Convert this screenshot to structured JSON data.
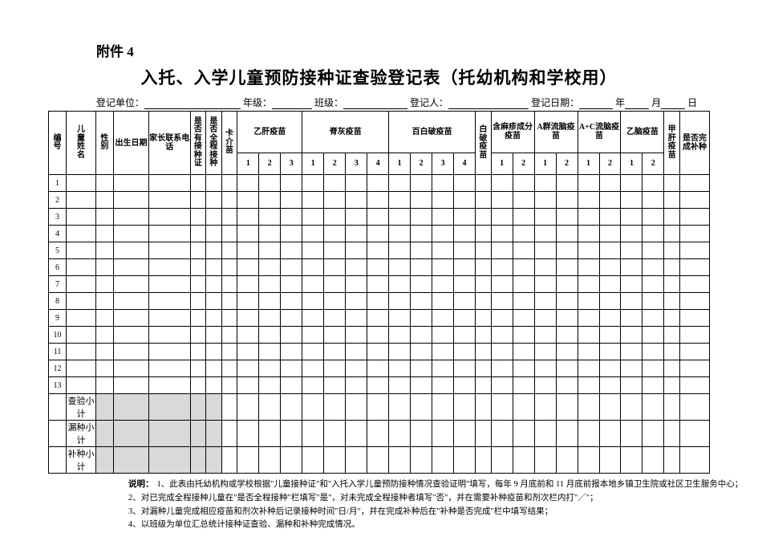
{
  "attachment": "附件 4",
  "title": "入托、入学儿童预防接种证查验登记表（托幼机构和学校用）",
  "meta": {
    "unit_label": "登记单位：",
    "grade_label": "年级：",
    "class_label": "班级：",
    "registrar_label": "登记人：",
    "date_label": "登记日期：",
    "year_unit": "年",
    "month_unit": "月",
    "day_unit": "日"
  },
  "headers": {
    "idx": "编号",
    "name": "儿童姓名",
    "sex": "性别",
    "dob": "出生日期",
    "phone": "家长联系电话",
    "has_cert": "是否有接种证",
    "full_course": "是否全程接种",
    "bcg": "卡介苗",
    "hepb": "乙肝疫苗",
    "polio": "脊灰疫苗",
    "dtp": "百白破疫苗",
    "dt": "白破疫苗",
    "measles": "含麻疹成分疫苗",
    "mena": "A群流脑疫苗",
    "menac": "A+C流脑疫苗",
    "je": "乙脑疫苗",
    "hepa": "甲肝疫苗",
    "supp_done": "是否完成补种"
  },
  "dose_labels": {
    "d1": "1",
    "d2": "2",
    "d3": "3",
    "d4": "4"
  },
  "row_nums": [
    "1",
    "2",
    "3",
    "4",
    "5",
    "6",
    "7",
    "8",
    "9",
    "10",
    "11",
    "12",
    "13"
  ],
  "subtotals": {
    "check": "查验小计",
    "missed": "漏种小计",
    "supp": "补种小计"
  },
  "notes_label": "说明：",
  "notes": [
    "1、此表由托幼机构或学校根据\"儿童接种证\"和\"入托入学儿童预防接种情况查验证明\"填写，每年 9 月底前和 11 月底前报本地乡镇卫生院或社区卫生服务中心；",
    "2、对已完成全程接种儿童在\"是否全程接种\"栏填写\"是\"，对未完成全程接种者填写\"否\"，并在需要补种疫苗和剂次栏内打\"／\"；",
    "3、对漏种儿童完成相应疫苗和剂次补种后记录接种时间\"日/月\"，并在完成补种后在\"补种是否完成\"栏中填写结果；",
    "4、以班级为单位汇总统计接种证查验、漏种和补种完成情况。"
  ],
  "colors": {
    "shade": "#d9d9d9",
    "border": "#000000",
    "bg": "#ffffff",
    "text": "#000000"
  }
}
